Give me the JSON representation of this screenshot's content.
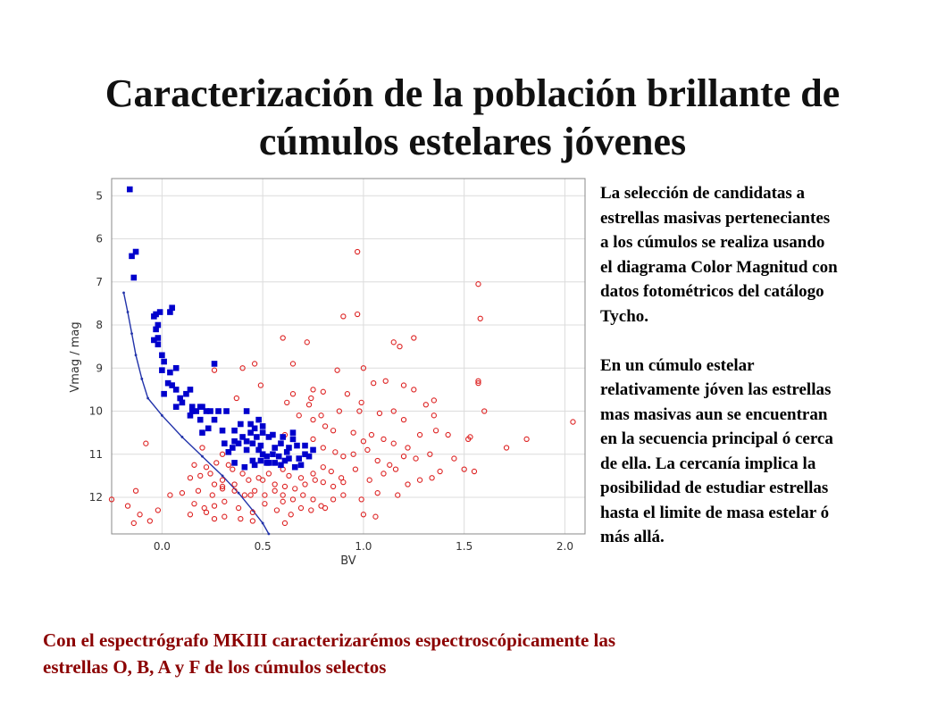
{
  "title": {
    "line1": "Caracterización de la población brillante de",
    "line2": "cúmulos estelares jóvenes"
  },
  "side_text": {
    "paragraph1": [
      "La selección de candidatas a",
      "estrellas  masivas perteneciantes",
      "a los cúmulos se realiza usando",
      "el diagrama Color Magnitud con",
      "datos fotométricos del catálogo",
      "Tycho."
    ],
    "paragraph2": [
      "En un cúmulo estelar",
      "relativamente jóven las estrellas",
      "mas masivas aun se encuentran",
      "en la secuencia principal ó cerca",
      "de ella. La cercanía implica la",
      "posibilidad de estudiar estrellas",
      "hasta el limite de masa estelar ó",
      "más allá."
    ]
  },
  "bottom_text": {
    "line1": "Con el espectrógrafo MKIII caracterizarémos espectroscópicamente las",
    "line2": "estrellas O, B, A y F de los cúmulos selectos"
  },
  "chart_data": {
    "type": "scatter",
    "xlabel": "BV",
    "ylabel": "Vmag / mag",
    "xlim": [
      -0.25,
      2.1
    ],
    "ylim": [
      12.85,
      4.6
    ],
    "y_inverted": true,
    "xticks": [
      "0.0",
      "0.5",
      "1.0",
      "1.5",
      "2.0"
    ],
    "yticks": [
      "5",
      "6",
      "7",
      "8",
      "9",
      "10",
      "11",
      "12"
    ],
    "grid": true,
    "colors": {
      "members": "#0000cc",
      "field": "#dd2222",
      "sequence": "#2233aa"
    },
    "series": [
      {
        "marker": "filled-square",
        "color": "#0000cc",
        "points": [
          [
            -0.16,
            4.85
          ],
          [
            -0.13,
            6.3
          ],
          [
            -0.15,
            6.4
          ],
          [
            -0.14,
            6.9
          ],
          [
            0.05,
            7.6
          ],
          [
            0.04,
            7.7
          ],
          [
            -0.03,
            7.75
          ],
          [
            -0.04,
            7.8
          ],
          [
            -0.01,
            7.7
          ],
          [
            -0.02,
            8.0
          ],
          [
            -0.03,
            8.1
          ],
          [
            -0.02,
            8.3
          ],
          [
            -0.04,
            8.35
          ],
          [
            -0.02,
            8.45
          ],
          [
            0.0,
            8.7
          ],
          [
            0.01,
            8.85
          ],
          [
            0.0,
            9.05
          ],
          [
            0.04,
            9.1
          ],
          [
            0.07,
            9.0
          ],
          [
            0.26,
            8.9
          ],
          [
            0.03,
            9.35
          ],
          [
            0.05,
            9.4
          ],
          [
            0.07,
            9.5
          ],
          [
            0.01,
            9.6
          ],
          [
            0.09,
            9.7
          ],
          [
            0.14,
            9.5
          ],
          [
            0.12,
            9.6
          ],
          [
            0.1,
            9.8
          ],
          [
            0.07,
            9.9
          ],
          [
            0.15,
            9.9
          ],
          [
            0.19,
            9.9
          ],
          [
            0.2,
            9.9
          ],
          [
            0.22,
            10.0
          ],
          [
            0.15,
            10.0
          ],
          [
            0.17,
            10.0
          ],
          [
            0.24,
            10.0
          ],
          [
            0.28,
            10.0
          ],
          [
            0.32,
            10.0
          ],
          [
            0.14,
            10.1
          ],
          [
            0.19,
            10.2
          ],
          [
            0.26,
            10.2
          ],
          [
            0.23,
            10.4
          ],
          [
            0.2,
            10.5
          ],
          [
            0.3,
            10.45
          ],
          [
            0.39,
            10.3
          ],
          [
            0.42,
            10.0
          ],
          [
            0.44,
            10.3
          ],
          [
            0.36,
            10.45
          ],
          [
            0.48,
            10.2
          ],
          [
            0.5,
            10.35
          ],
          [
            0.46,
            10.4
          ],
          [
            0.44,
            10.5
          ],
          [
            0.47,
            10.6
          ],
          [
            0.5,
            10.5
          ],
          [
            0.4,
            10.6
          ],
          [
            0.36,
            10.7
          ],
          [
            0.38,
            10.75
          ],
          [
            0.42,
            10.7
          ],
          [
            0.45,
            10.75
          ],
          [
            0.49,
            10.8
          ],
          [
            0.53,
            10.6
          ],
          [
            0.55,
            10.55
          ],
          [
            0.6,
            10.6
          ],
          [
            0.65,
            10.5
          ],
          [
            0.65,
            10.65
          ],
          [
            0.59,
            10.75
          ],
          [
            0.56,
            10.85
          ],
          [
            0.63,
            10.85
          ],
          [
            0.67,
            10.8
          ],
          [
            0.71,
            10.8
          ],
          [
            0.48,
            10.9
          ],
          [
            0.5,
            11.0
          ],
          [
            0.52,
            11.05
          ],
          [
            0.55,
            11.0
          ],
          [
            0.58,
            11.05
          ],
          [
            0.52,
            11.2
          ],
          [
            0.45,
            11.15
          ],
          [
            0.42,
            10.9
          ],
          [
            0.35,
            10.85
          ],
          [
            0.31,
            10.75
          ],
          [
            0.33,
            10.95
          ],
          [
            0.36,
            11.2
          ],
          [
            0.41,
            11.3
          ],
          [
            0.46,
            11.25
          ],
          [
            0.61,
            11.15
          ],
          [
            0.68,
            11.1
          ],
          [
            0.73,
            11.05
          ],
          [
            0.75,
            10.9
          ],
          [
            0.69,
            11.25
          ],
          [
            0.63,
            11.1
          ],
          [
            0.59,
            11.25
          ],
          [
            0.56,
            11.2
          ],
          [
            0.53,
            11.2
          ],
          [
            0.49,
            11.15
          ],
          [
            0.71,
            11.0
          ],
          [
            0.62,
            10.95
          ],
          [
            0.66,
            11.3
          ]
        ]
      },
      {
        "marker": "open-circle",
        "color": "#dd2222",
        "points": [
          [
            0.97,
            6.3
          ],
          [
            1.57,
            7.05
          ],
          [
            1.58,
            7.85
          ],
          [
            0.9,
            7.8
          ],
          [
            0.97,
            7.75
          ],
          [
            1.15,
            8.4
          ],
          [
            1.25,
            8.3
          ],
          [
            0.6,
            8.3
          ],
          [
            0.72,
            8.4
          ],
          [
            1.18,
            8.5
          ],
          [
            0.46,
            8.9
          ],
          [
            0.65,
            8.9
          ],
          [
            0.4,
            9.0
          ],
          [
            0.26,
            9.05
          ],
          [
            0.87,
            9.05
          ],
          [
            1.0,
            9.0
          ],
          [
            1.57,
            9.3
          ],
          [
            1.57,
            9.35
          ],
          [
            1.05,
            9.35
          ],
          [
            1.11,
            9.3
          ],
          [
            1.2,
            9.4
          ],
          [
            1.25,
            9.5
          ],
          [
            0.75,
            9.5
          ],
          [
            0.8,
            9.55
          ],
          [
            0.65,
            9.6
          ],
          [
            0.74,
            9.7
          ],
          [
            0.92,
            9.6
          ],
          [
            0.99,
            9.8
          ],
          [
            1.35,
            9.75
          ],
          [
            0.37,
            9.7
          ],
          [
            0.49,
            9.4
          ],
          [
            0.62,
            9.8
          ],
          [
            0.73,
            9.85
          ],
          [
            0.79,
            10.1
          ],
          [
            0.88,
            10.0
          ],
          [
            0.98,
            10.0
          ],
          [
            1.08,
            10.05
          ],
          [
            1.15,
            10.0
          ],
          [
            1.2,
            10.2
          ],
          [
            1.31,
            9.85
          ],
          [
            1.35,
            10.1
          ],
          [
            1.6,
            10.0
          ],
          [
            2.04,
            10.25
          ],
          [
            1.81,
            10.65
          ],
          [
            1.71,
            10.85
          ],
          [
            1.53,
            10.6
          ],
          [
            1.52,
            10.65
          ],
          [
            0.68,
            10.1
          ],
          [
            0.75,
            10.2
          ],
          [
            0.81,
            10.35
          ],
          [
            0.85,
            10.45
          ],
          [
            0.95,
            10.5
          ],
          [
            1.0,
            10.7
          ],
          [
            1.04,
            10.55
          ],
          [
            1.1,
            10.65
          ],
          [
            1.15,
            10.75
          ],
          [
            1.22,
            10.85
          ],
          [
            1.28,
            10.55
          ],
          [
            1.36,
            10.45
          ],
          [
            1.42,
            10.55
          ],
          [
            0.75,
            10.65
          ],
          [
            0.8,
            10.85
          ],
          [
            0.86,
            10.95
          ],
          [
            0.9,
            11.05
          ],
          [
            0.95,
            11.0
          ],
          [
            1.02,
            10.9
          ],
          [
            1.07,
            11.15
          ],
          [
            1.13,
            11.25
          ],
          [
            1.2,
            11.05
          ],
          [
            1.26,
            11.1
          ],
          [
            1.33,
            11.0
          ],
          [
            1.45,
            11.1
          ],
          [
            1.38,
            11.4
          ],
          [
            1.5,
            11.35
          ],
          [
            1.55,
            11.4
          ],
          [
            0.2,
            10.85
          ],
          [
            0.3,
            11.0
          ],
          [
            0.16,
            11.25
          ],
          [
            0.22,
            11.3
          ],
          [
            0.27,
            11.2
          ],
          [
            0.33,
            11.25
          ],
          [
            0.35,
            11.35
          ],
          [
            0.4,
            11.45
          ],
          [
            0.24,
            11.45
          ],
          [
            0.19,
            11.5
          ],
          [
            0.14,
            11.55
          ],
          [
            0.3,
            11.6
          ],
          [
            0.26,
            11.7
          ],
          [
            0.3,
            11.75
          ],
          [
            0.36,
            11.7
          ],
          [
            0.43,
            11.6
          ],
          [
            0.48,
            11.55
          ],
          [
            0.53,
            11.45
          ],
          [
            0.6,
            11.35
          ],
          [
            0.63,
            11.5
          ],
          [
            0.69,
            11.55
          ],
          [
            0.75,
            11.45
          ],
          [
            0.8,
            11.3
          ],
          [
            0.84,
            11.4
          ],
          [
            0.89,
            11.55
          ],
          [
            0.96,
            11.35
          ],
          [
            1.03,
            11.6
          ],
          [
            1.1,
            11.45
          ],
          [
            1.16,
            11.35
          ],
          [
            1.22,
            11.7
          ],
          [
            1.28,
            11.6
          ],
          [
            1.34,
            11.55
          ],
          [
            0.5,
            11.6
          ],
          [
            0.56,
            11.7
          ],
          [
            0.61,
            11.75
          ],
          [
            0.66,
            11.8
          ],
          [
            0.71,
            11.7
          ],
          [
            0.76,
            11.6
          ],
          [
            0.8,
            11.65
          ],
          [
            0.85,
            11.75
          ],
          [
            0.9,
            11.65
          ],
          [
            0.36,
            11.85
          ],
          [
            0.41,
            11.95
          ],
          [
            0.46,
            11.85
          ],
          [
            0.51,
            11.95
          ],
          [
            0.56,
            11.85
          ],
          [
            0.6,
            11.95
          ],
          [
            0.65,
            12.05
          ],
          [
            0.7,
            11.95
          ],
          [
            0.75,
            12.05
          ],
          [
            0.79,
            12.2
          ],
          [
            0.85,
            12.05
          ],
          [
            0.9,
            11.95
          ],
          [
            0.99,
            12.05
          ],
          [
            1.07,
            11.9
          ],
          [
            1.17,
            11.95
          ],
          [
            -0.13,
            11.85
          ],
          [
            -0.25,
            12.05
          ],
          [
            -0.17,
            12.2
          ],
          [
            0.1,
            11.9
          ],
          [
            0.18,
            11.85
          ],
          [
            0.25,
            11.95
          ],
          [
            0.3,
            11.8
          ],
          [
            0.44,
            11.95
          ],
          [
            0.6,
            12.1
          ],
          [
            0.04,
            11.95
          ],
          [
            0.16,
            12.15
          ],
          [
            0.21,
            12.25
          ],
          [
            0.26,
            12.2
          ],
          [
            0.31,
            12.1
          ],
          [
            0.38,
            12.25
          ],
          [
            0.45,
            12.35
          ],
          [
            0.51,
            12.15
          ],
          [
            0.57,
            12.3
          ],
          [
            0.64,
            12.4
          ],
          [
            0.69,
            12.25
          ],
          [
            0.74,
            12.3
          ],
          [
            0.81,
            12.25
          ],
          [
            1.0,
            12.4
          ],
          [
            1.06,
            12.45
          ],
          [
            -0.11,
            12.4
          ],
          [
            -0.06,
            12.55
          ],
          [
            -0.14,
            12.6
          ],
          [
            -0.02,
            12.3
          ],
          [
            0.31,
            12.45
          ],
          [
            0.39,
            12.5
          ],
          [
            0.45,
            12.55
          ],
          [
            0.61,
            12.6
          ],
          [
            0.26,
            12.5
          ],
          [
            0.22,
            12.35
          ],
          [
            0.14,
            12.4
          ],
          [
            -0.08,
            10.75
          ],
          [
            0.61,
            10.55
          ],
          [
            0.2,
            10.5
          ]
        ]
      }
    ],
    "sequence_line": [
      [
        -0.19,
        7.25
      ],
      [
        -0.17,
        7.7
      ],
      [
        -0.15,
        8.2
      ],
      [
        -0.13,
        8.7
      ],
      [
        -0.1,
        9.25
      ],
      [
        -0.07,
        9.7
      ],
      [
        0.0,
        10.1
      ],
      [
        0.1,
        10.6
      ],
      [
        0.2,
        11.05
      ],
      [
        0.3,
        11.5
      ],
      [
        0.38,
        11.9
      ],
      [
        0.45,
        12.3
      ],
      [
        0.5,
        12.6
      ],
      [
        0.53,
        12.85
      ]
    ]
  }
}
